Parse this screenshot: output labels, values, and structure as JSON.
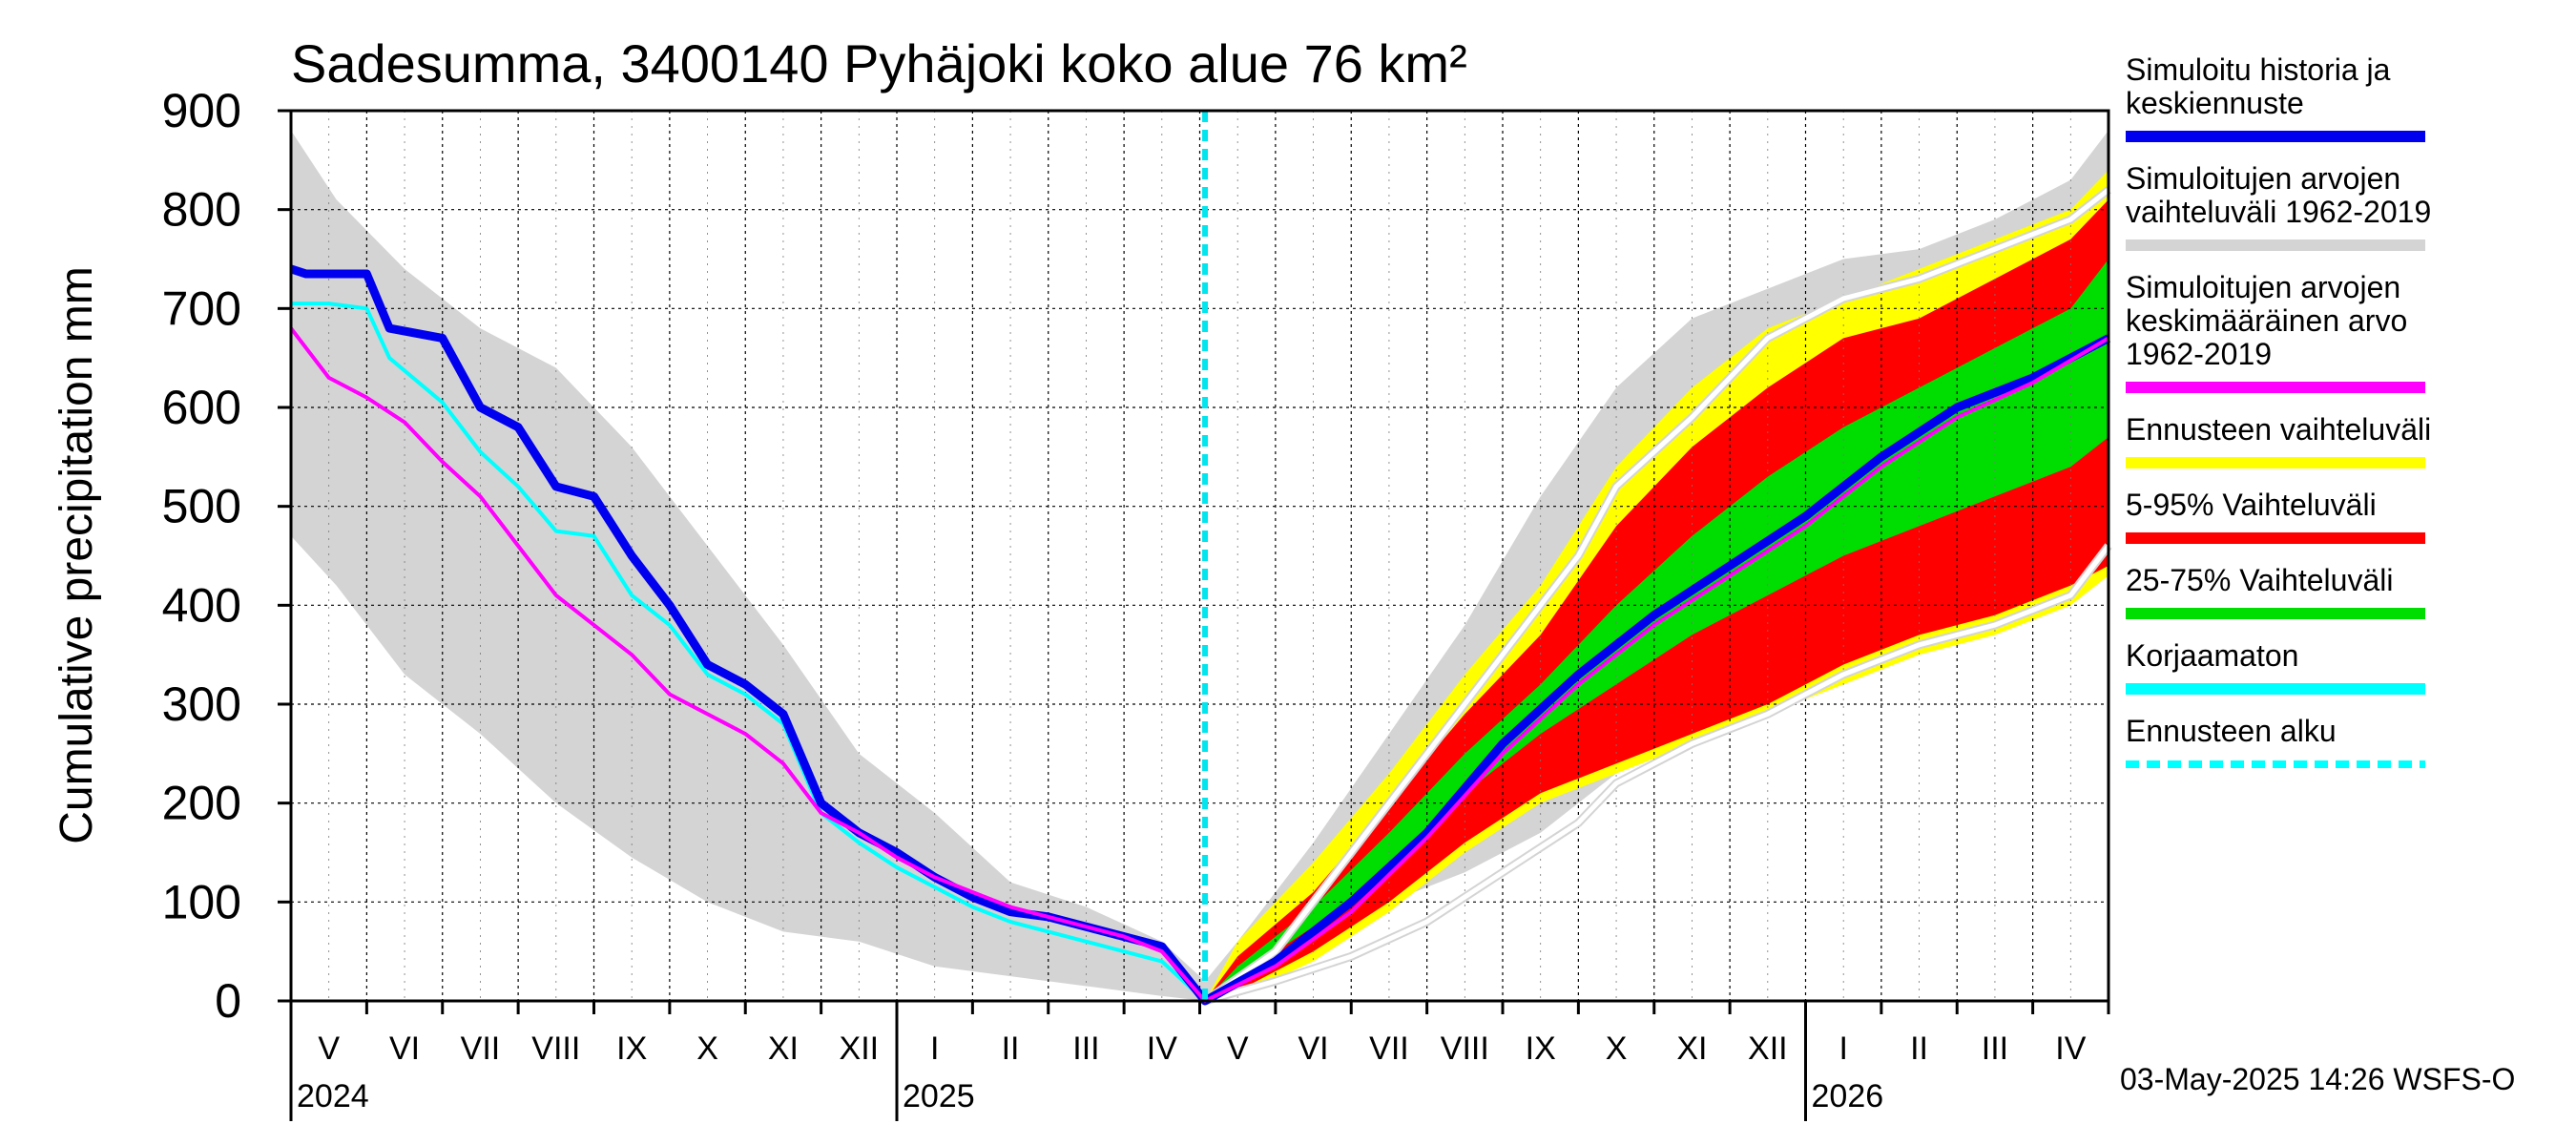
{
  "chart_data": {
    "type": "area",
    "title": "Sadesumma, 3400140 Pyhäjoki koko alue 76 km²",
    "ylabel": "Cumulative precipitation   mm",
    "xlabel": "",
    "ylim": [
      0,
      900
    ],
    "y_ticks": [
      0,
      100,
      200,
      300,
      400,
      500,
      600,
      700,
      800,
      900
    ],
    "x_unit": "months since 2024-05-01",
    "x_range": [
      0,
      24
    ],
    "forecast_start_x": 12.07,
    "month_labels": [
      "V",
      "VI",
      "VII",
      "VIII",
      "IX",
      "X",
      "XI",
      "XII",
      "I",
      "II",
      "III",
      "IV",
      "V",
      "VI",
      "VII",
      "VIII",
      "IX",
      "X",
      "XI",
      "XII",
      "I",
      "II",
      "III",
      "IV"
    ],
    "year_labels": [
      {
        "x": 0,
        "label": "2024"
      },
      {
        "x": 8,
        "label": "2025"
      },
      {
        "x": 20,
        "label": "2026"
      }
    ],
    "series": [
      {
        "name": "Simuloitujen arvojen vaihteluväli 1962-2019",
        "kind": "band",
        "color": "#d4d4d4",
        "x": [
          0,
          0.6,
          1.5,
          2.5,
          3.5,
          4.5,
          5.5,
          6.5,
          7.5,
          8.5,
          9.5,
          10.5,
          11.5,
          12.07,
          12.5,
          13.5,
          14.5,
          15.5,
          16.5,
          17.5,
          18.5,
          19.5,
          20.5,
          21.5,
          22.5,
          23.5,
          24
        ],
        "lower": [
          470,
          420,
          330,
          270,
          200,
          145,
          100,
          70,
          60,
          35,
          25,
          15,
          5,
          0,
          15,
          55,
          100,
          130,
          170,
          230,
          270,
          300,
          330,
          350,
          380,
          420,
          430
        ],
        "upper": [
          880,
          810,
          740,
          680,
          640,
          560,
          460,
          360,
          250,
          190,
          120,
          95,
          60,
          20,
          60,
          160,
          270,
          380,
          510,
          620,
          690,
          720,
          750,
          760,
          790,
          830,
          880
        ]
      },
      {
        "name": "Ennusteen vaihteluväli",
        "kind": "band",
        "color": "#ffff00",
        "x": [
          12.07,
          12.5,
          13.5,
          14.5,
          15.5,
          16.5,
          17.5,
          18.5,
          19.5,
          20.5,
          21.5,
          22.5,
          23.5,
          24
        ],
        "lower": [
          0,
          5,
          40,
          90,
          150,
          200,
          230,
          260,
          290,
          320,
          350,
          370,
          400,
          430
        ],
        "upper": [
          0,
          60,
          140,
          230,
          330,
          420,
          540,
          620,
          680,
          710,
          740,
          770,
          800,
          840
        ]
      },
      {
        "name": "5-95% Vaihteluväli",
        "kind": "band",
        "color": "#ff0000",
        "x": [
          12.07,
          12.5,
          13.5,
          14.5,
          15.5,
          16.5,
          17.5,
          18.5,
          19.5,
          20.5,
          21.5,
          22.5,
          23.5,
          24
        ],
        "lower": [
          0,
          10,
          50,
          100,
          160,
          210,
          240,
          270,
          300,
          340,
          370,
          390,
          420,
          440
        ],
        "upper": [
          0,
          45,
          110,
          200,
          290,
          370,
          480,
          560,
          620,
          670,
          690,
          730,
          770,
          810
        ]
      },
      {
        "name": "25-75% Vaihteluväli",
        "kind": "band",
        "color": "#00dd00",
        "x": [
          12.07,
          12.5,
          13.5,
          14.5,
          15.5,
          16.5,
          17.5,
          18.5,
          19.5,
          20.5,
          21.5,
          22.5,
          23.5,
          24
        ],
        "lower": [
          0,
          25,
          75,
          130,
          210,
          270,
          320,
          370,
          410,
          450,
          480,
          510,
          540,
          570
        ],
        "upper": [
          0,
          35,
          95,
          170,
          250,
          320,
          400,
          470,
          530,
          580,
          620,
          660,
          700,
          750
        ]
      },
      {
        "name": "Simuloitu historia ja keskiennuste",
        "kind": "line",
        "color": "#0000ee",
        "x": [
          0,
          0.2,
          1.0,
          1.3,
          2.0,
          2.5,
          3.0,
          3.5,
          4.0,
          4.5,
          5.0,
          5.5,
          6.0,
          6.5,
          7.0,
          7.5,
          8.0,
          8.5,
          9.0,
          9.5,
          10.0,
          10.5,
          11.0,
          11.5,
          12.07,
          13.0,
          14.0,
          15.0,
          16.0,
          17.0,
          18.0,
          19.0,
          20.0,
          21.0,
          22.0,
          23.0,
          24.0
        ],
        "y": [
          740,
          735,
          735,
          680,
          670,
          600,
          580,
          520,
          510,
          450,
          400,
          340,
          320,
          290,
          200,
          170,
          150,
          125,
          105,
          90,
          85,
          75,
          65,
          55,
          0,
          40,
          100,
          170,
          260,
          330,
          390,
          440,
          490,
          550,
          600,
          630,
          670
        ]
      },
      {
        "name": "Simuloitujen arvojen keskimääräinen arvo 1962-2019",
        "kind": "line",
        "color": "#ff00ff",
        "x": [
          0,
          0.5,
          1.0,
          1.5,
          2.0,
          2.5,
          3.0,
          3.5,
          4.0,
          4.5,
          5.0,
          5.5,
          6.0,
          6.5,
          7.0,
          7.5,
          8.0,
          8.5,
          9.0,
          9.5,
          10.0,
          10.5,
          11.0,
          11.5,
          12.07,
          13.0,
          14.0,
          15.0,
          16.0,
          17.0,
          18.0,
          19.0,
          20.0,
          21.0,
          22.0,
          23.0,
          24.0
        ],
        "y": [
          680,
          630,
          610,
          585,
          545,
          510,
          460,
          410,
          380,
          350,
          310,
          290,
          270,
          240,
          190,
          170,
          145,
          125,
          110,
          95,
          85,
          75,
          65,
          50,
          0,
          35,
          90,
          165,
          250,
          320,
          380,
          430,
          480,
          540,
          590,
          625,
          670
        ]
      },
      {
        "name": "Korjaamaton",
        "kind": "line",
        "color": "#00ffff",
        "x": [
          0,
          0.5,
          1.0,
          1.3,
          2.0,
          2.5,
          3.0,
          3.5,
          4.0,
          4.5,
          5.0,
          5.5,
          6.0,
          6.5,
          7.0,
          7.5,
          8.0,
          8.5,
          9.0,
          9.5,
          10.0,
          10.5,
          11.0,
          11.5,
          12.07
        ],
        "y": [
          705,
          705,
          700,
          650,
          605,
          555,
          520,
          475,
          470,
          410,
          380,
          330,
          310,
          280,
          190,
          160,
          135,
          115,
          95,
          80,
          70,
          60,
          50,
          40,
          0
        ]
      },
      {
        "name": "gray-lower-trace",
        "kind": "line",
        "color": "#ffffff",
        "x": [
          12.07,
          13.0,
          14.0,
          15.0,
          16.0,
          17.0,
          17.5,
          18.5,
          19.5,
          20.5,
          21.5,
          22.5,
          23.5,
          24
        ],
        "y": [
          0,
          20,
          45,
          80,
          130,
          180,
          220,
          260,
          290,
          330,
          360,
          380,
          410,
          460
        ]
      },
      {
        "name": "gray-upper-trace",
        "kind": "line",
        "color": "#ffffff",
        "x": [
          12.07,
          13.0,
          14.0,
          15.0,
          16.0,
          17.0,
          17.5,
          18.5,
          19.5,
          20.5,
          21.5,
          22.5,
          23.5,
          24
        ],
        "y": [
          0,
          50,
          150,
          250,
          350,
          450,
          520,
          590,
          670,
          710,
          730,
          760,
          790,
          820
        ]
      }
    ]
  },
  "legend": [
    {
      "label": "Simuloitu historia ja keskiennuste",
      "lines": [
        "Simuloitu historia ja",
        "keskiennuste"
      ],
      "color": "#0000ee",
      "style": "solid"
    },
    {
      "label": "Simuloitujen arvojen vaihteluväli 1962-2019",
      "lines": [
        "Simuloitujen arvojen",
        "vaihteluväli 1962-2019"
      ],
      "color": "#d4d4d4",
      "style": "solid"
    },
    {
      "label": "Simuloitujen arvojen keskimääräinen arvo 1962-2019",
      "lines": [
        "Simuloitujen arvojen",
        "keskimääräinen arvo",
        "   1962-2019"
      ],
      "color": "#ff00ff",
      "style": "solid"
    },
    {
      "label": "Ennusteen vaihteluväli",
      "lines": [
        "Ennusteen vaihteluväli"
      ],
      "color": "#ffff00",
      "style": "solid"
    },
    {
      "label": "5-95% Vaihteluväli",
      "lines": [
        "5-95% Vaihteluväli"
      ],
      "color": "#ff0000",
      "style": "solid"
    },
    {
      "label": "25-75% Vaihteluväli",
      "lines": [
        "25-75% Vaihteluväli"
      ],
      "color": "#00dd00",
      "style": "solid"
    },
    {
      "label": "Korjaamaton",
      "lines": [
        "Korjaamaton"
      ],
      "color": "#00ffff",
      "style": "solid"
    },
    {
      "label": "Ennusteen alku",
      "lines": [
        "Ennusteen alku"
      ],
      "color": "#00ffff",
      "style": "dashed"
    }
  ],
  "footer": "03-May-2025 14:26 WSFS-O"
}
